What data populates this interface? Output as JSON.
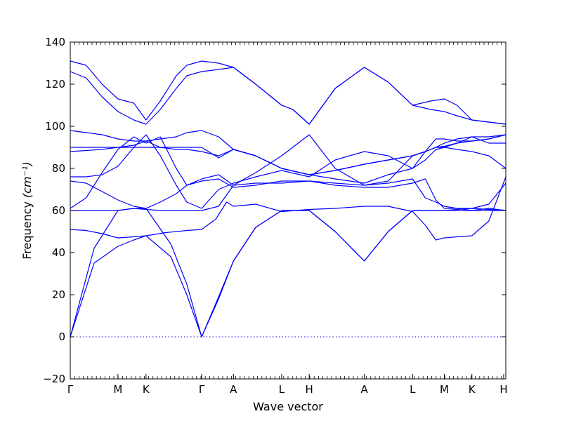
{
  "chart_data": {
    "type": "line",
    "title": "",
    "xlabel": "Wave vector",
    "ylabel": "Frequency",
    "ylabel_unit": "(cm⁻¹)",
    "ylim": [
      -20,
      140
    ],
    "yticks": [
      -20,
      0,
      20,
      40,
      60,
      80,
      100,
      120,
      140
    ],
    "xlim": [
      0,
      8.22
    ],
    "grid": false,
    "legend": "none",
    "line_color": "#0000ff",
    "kpoints": [
      {
        "label": "Γ",
        "x": 0
      },
      {
        "label": "M",
        "x": 0.9
      },
      {
        "label": "K",
        "x": 1.43
      },
      {
        "label": "Γ",
        "x": 2.48
      },
      {
        "label": "A",
        "x": 3.08
      },
      {
        "label": "L",
        "x": 3.99
      },
      {
        "label": "H",
        "x": 4.51
      },
      {
        "label": "A",
        "x": 5.55
      },
      {
        "label": "L",
        "x": 6.46
      },
      {
        "label": "M",
        "x": 7.06
      },
      {
        "label": "K",
        "x": 7.58
      },
      {
        "label": "H",
        "x": 8.18
      }
    ],
    "zero_line": {
      "y": 0,
      "style": "dotted"
    },
    "series": [
      {
        "x": [
          0,
          0.45,
          0.9,
          1.2,
          1.43,
          1.9,
          2.2,
          2.48,
          2.8,
          3.08,
          3.5,
          3.99,
          4.2,
          4.51,
          5.0,
          5.55,
          6.0,
          6.46,
          6.8,
          7.06,
          7.3,
          7.58,
          7.9,
          8.22
        ],
        "y": [
          0,
          35,
          43,
          46,
          48,
          38,
          20,
          0,
          18,
          36,
          52,
          60,
          60,
          60,
          50,
          36,
          50,
          60,
          60,
          60,
          60,
          60,
          60,
          60
        ]
      },
      {
        "x": [
          0,
          0.45,
          0.9,
          1.2,
          1.43,
          1.9,
          2.2,
          2.48,
          2.8,
          3.08,
          3.5,
          3.99,
          4.2,
          4.51,
          5.0,
          5.55,
          6.0,
          6.46,
          6.8,
          7.06,
          7.3,
          7.58,
          7.9,
          8.22
        ],
        "y": [
          0,
          42,
          60,
          61,
          61,
          44,
          25,
          0,
          19,
          36,
          52,
          60,
          60,
          60,
          50,
          36,
          50,
          60,
          60,
          60,
          60.5,
          61,
          60.5,
          60
        ]
      },
      {
        "x": [
          0,
          0.3,
          0.6,
          0.9,
          1.2,
          1.43,
          1.8,
          2.2,
          2.48,
          2.75,
          2.95,
          3.08,
          3.5,
          3.99,
          4.51,
          5.0,
          5.55,
          6.0,
          6.46,
          6.7,
          6.9,
          7.06,
          7.3,
          7.58,
          7.9,
          8.22
        ],
        "y": [
          51,
          50.5,
          49,
          47,
          47.5,
          48,
          49.5,
          50.5,
          51,
          56,
          64,
          62,
          63,
          59.5,
          60.5,
          61,
          62,
          62,
          59.5,
          53,
          46,
          47,
          47.5,
          48,
          55,
          76
        ]
      },
      {
        "x": [
          0,
          0.3,
          0.6,
          0.9,
          1.2,
          1.43,
          1.7,
          2.0,
          2.2,
          2.48,
          2.8,
          3.08,
          3.5,
          3.99,
          4.51,
          5.0,
          5.55,
          6.0,
          6.46,
          6.7,
          6.9,
          7.06,
          7.3,
          7.58,
          7.9,
          8.22
        ],
        "y": [
          60,
          60,
          60,
          60,
          61,
          60.5,
          60,
          60,
          60,
          60,
          62,
          72,
          73,
          73,
          74,
          73,
          72,
          73,
          75,
          66,
          64,
          62,
          61,
          60,
          61,
          60
        ]
      },
      {
        "x": [
          0,
          0.3,
          0.6,
          0.9,
          1.2,
          1.43,
          1.7,
          2.0,
          2.2,
          2.48,
          2.8,
          3.08,
          3.5,
          3.99,
          4.51,
          5.0,
          5.55,
          6.0,
          6.46,
          6.7,
          6.9,
          7.06,
          7.3,
          7.58,
          7.9,
          8.22
        ],
        "y": [
          74,
          73,
          69,
          65,
          62,
          61,
          64,
          68,
          72,
          74,
          75,
          71,
          72,
          74,
          74,
          72,
          71,
          71,
          73,
          75,
          65,
          61,
          61,
          61,
          63,
          73
        ]
      },
      {
        "x": [
          0,
          0.3,
          0.6,
          0.9,
          1.2,
          1.43,
          1.7,
          2.0,
          2.2,
          2.48,
          2.8,
          3.08,
          3.5,
          3.99,
          4.51,
          5.0,
          5.55,
          6.0,
          6.46,
          6.7,
          6.9,
          7.06,
          7.3,
          7.58,
          7.9,
          8.22
        ],
        "y": [
          76,
          76,
          77,
          81,
          90,
          96,
          86,
          72,
          64,
          61,
          70,
          73,
          76,
          79,
          76,
          84,
          88,
          86,
          80,
          84,
          89,
          90,
          89,
          88,
          86,
          80
        ]
      },
      {
        "x": [
          0,
          0.3,
          0.6,
          0.9,
          1.2,
          1.43,
          1.7,
          2.0,
          2.2,
          2.48,
          2.8,
          3.08,
          3.5,
          3.99,
          4.51,
          5.0,
          5.55,
          6.0,
          6.46,
          6.7,
          6.9,
          7.06,
          7.3,
          7.58,
          7.9,
          8.22
        ],
        "y": [
          61,
          66,
          78,
          89,
          95,
          92,
          95,
          80,
          72,
          75,
          77,
          72,
          78,
          86,
          96,
          80,
          72,
          74,
          86,
          88,
          90,
          90,
          92,
          95,
          92,
          92
        ]
      },
      {
        "x": [
          0,
          0.3,
          0.6,
          0.9,
          1.2,
          1.43,
          1.7,
          2.0,
          2.2,
          2.48,
          2.8,
          3.08,
          3.5,
          3.99,
          4.51,
          5.0,
          5.55,
          6.0,
          6.46,
          6.7,
          6.9,
          7.06,
          7.3,
          7.58,
          7.9,
          8.22
        ],
        "y": [
          88,
          88.5,
          89,
          90,
          91,
          93,
          90,
          89,
          89,
          88,
          86,
          89,
          86,
          80,
          77,
          79,
          82,
          84,
          86,
          88,
          90,
          90.5,
          92,
          93,
          94,
          96
        ]
      },
      {
        "x": [
          0,
          0.3,
          0.6,
          0.9,
          1.2,
          1.43,
          1.7,
          2.0,
          2.2,
          2.48,
          2.8,
          3.08,
          3.5,
          3.99,
          4.51,
          5.0,
          5.55,
          6.0,
          6.46,
          6.7,
          6.9,
          7.06,
          7.3,
          7.58,
          7.9,
          8.22
        ],
        "y": [
          90,
          90,
          90,
          90,
          90,
          90,
          90,
          90,
          90,
          90,
          85,
          89,
          86,
          80,
          77,
          79,
          82,
          84,
          86,
          88,
          90,
          92,
          94,
          95,
          95,
          96
        ]
      },
      {
        "x": [
          0,
          0.3,
          0.6,
          0.9,
          1.2,
          1.43,
          1.7,
          2.0,
          2.2,
          2.48,
          2.8,
          3.08,
          3.5,
          3.99,
          4.51,
          5.0,
          5.55,
          6.0,
          6.46,
          6.7,
          6.9,
          7.06,
          7.3,
          7.58,
          7.9,
          8.22
        ],
        "y": [
          98,
          97,
          96,
          94,
          93,
          93,
          94,
          95,
          97,
          98,
          95,
          89,
          86,
          80,
          77,
          75,
          73,
          77,
          80,
          88,
          94,
          94,
          93,
          93,
          94,
          96
        ]
      },
      {
        "x": [
          0,
          0.3,
          0.6,
          0.9,
          1.2,
          1.43,
          1.7,
          2.0,
          2.2,
          2.48,
          2.8,
          3.08,
          3.5,
          3.99,
          4.2,
          4.51,
          5.0,
          5.55,
          6.0,
          6.46,
          6.8,
          7.06,
          7.3,
          7.58,
          7.9,
          8.22
        ],
        "y": [
          126,
          123,
          114,
          107,
          103,
          101,
          108,
          118,
          124,
          126,
          127,
          128,
          120,
          110,
          108,
          101,
          118,
          128,
          121,
          110,
          108,
          107,
          105,
          103,
          102,
          101
        ]
      },
      {
        "x": [
          0,
          0.3,
          0.6,
          0.9,
          1.2,
          1.43,
          1.7,
          2.0,
          2.2,
          2.48,
          2.8,
          3.08,
          3.5,
          3.99,
          4.2,
          4.51,
          5.0,
          5.55,
          6.0,
          6.46,
          6.8,
          7.06,
          7.3,
          7.58,
          7.9,
          8.22
        ],
        "y": [
          131,
          129,
          120,
          113,
          111,
          103,
          112,
          124,
          129,
          131,
          130,
          128,
          120,
          110,
          108,
          101,
          118,
          128,
          121,
          110,
          112,
          113,
          110,
          103,
          102,
          101
        ]
      }
    ]
  }
}
